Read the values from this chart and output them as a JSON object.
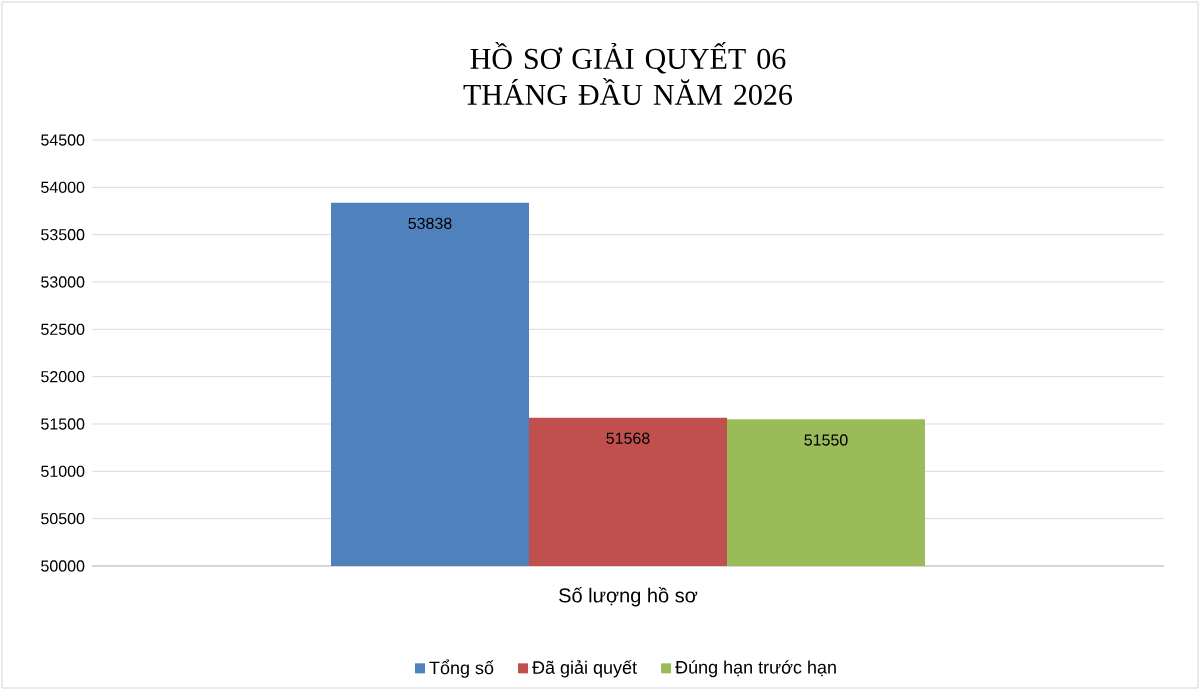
{
  "chart_data": {
    "type": "bar",
    "title": "HỒ SƠ GIẢI QUYẾT 06 THÁNG ĐẦU NĂM 2026",
    "xlabel": "Số lượng hồ sơ",
    "categories": [
      "Số lượng hồ sơ"
    ],
    "series": [
      {
        "name": "Tổng số",
        "color": "#4f81bd",
        "values": [
          53838
        ]
      },
      {
        "name": "Đã giải quyết",
        "color": "#c0504d",
        "values": [
          51568
        ]
      },
      {
        "name": "Đúng hạn trước hạn",
        "color": "#9bbb59",
        "values": [
          51550
        ]
      }
    ],
    "ylim": [
      50000,
      54500
    ],
    "yticks": [
      50000,
      50500,
      51000,
      51500,
      52000,
      52500,
      53000,
      53500,
      54000,
      54500
    ],
    "grid": "y",
    "legend": "bottom",
    "data_labels": true
  }
}
